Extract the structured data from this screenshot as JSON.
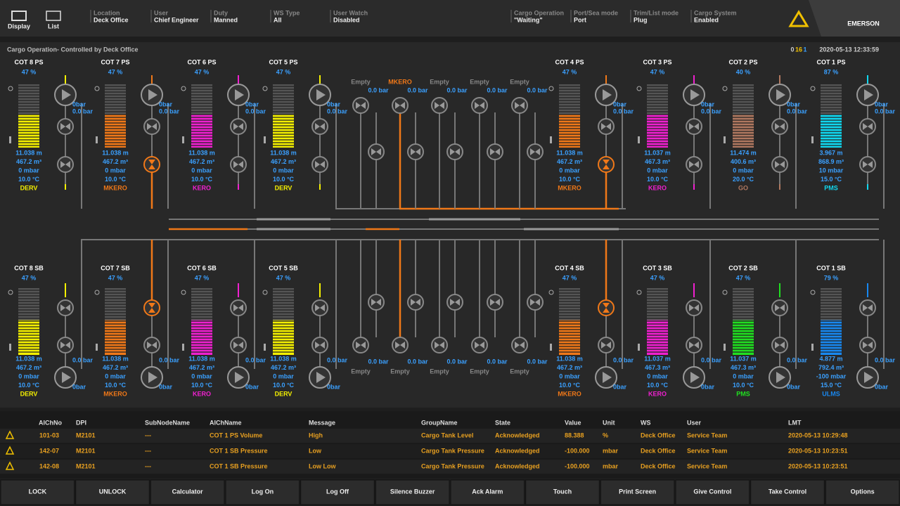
{
  "header": {
    "buttons": [
      "Display",
      "List"
    ],
    "fields": [
      {
        "label": "Location",
        "value": "Deck Office"
      },
      {
        "label": "User",
        "value": "Chief Engineer"
      },
      {
        "label": "Duty",
        "value": "Manned"
      },
      {
        "label": "WS Type",
        "value": "All"
      },
      {
        "label": "User Watch",
        "value": "Disabled"
      },
      {
        "label": "Cargo Operation",
        "value": "\"Waiting\""
      },
      {
        "label": "Port/Sea mode",
        "value": "Port"
      },
      {
        "label": "Trim/List mode",
        "value": "Plug"
      },
      {
        "label": "Cargo System",
        "value": "Enabled"
      }
    ],
    "logo": "EMERSON"
  },
  "status": {
    "title": "Cargo Operation- Controlled by Deck Office",
    "counts": [
      "0",
      "16",
      "1"
    ],
    "datetime": "2020-05-13 12:33:59"
  },
  "top_tanks": [
    {
      "name": "COT 8 PS",
      "percent": "47 %",
      "level": "11.038 m",
      "volume": "467.2 m³",
      "pressure": "0 mbar",
      "temperature": "10.0 °C",
      "product": "DERV",
      "color": "#f4f000",
      "pump": "0bar",
      "line": "0.0 bar"
    },
    {
      "name": "COT 7 PS",
      "percent": "47 %",
      "level": "11.038 m",
      "volume": "467.2 m³",
      "pressure": "0 mbar",
      "temperature": "10.0 °C",
      "product": "MKERO",
      "color": "#f07818",
      "pump": "0bar",
      "line": "0.0 bar"
    },
    {
      "name": "COT 6 PS",
      "percent": "47 %",
      "level": "11.038 m",
      "volume": "467.2 m³",
      "pressure": "0 mbar",
      "temperature": "10.0 °C",
      "product": "KERO",
      "color": "#f020d0",
      "pump": "0bar",
      "line": "0.0 bar"
    },
    {
      "name": "COT 5 PS",
      "percent": "47 %",
      "level": "11.038 m",
      "volume": "467.2 m³",
      "pressure": "0 mbar",
      "temperature": "10.0 °C",
      "product": "DERV",
      "color": "#f4f000",
      "pump": "0bar",
      "line": "0.0 bar"
    },
    {
      "name": "COT 4 PS",
      "percent": "47 %",
      "level": "11.038 m",
      "volume": "467.2 m³",
      "pressure": "0 mbar",
      "temperature": "10.0 °C",
      "product": "MKERO",
      "color": "#f07818",
      "pump": "0bar",
      "line": "0.0 bar"
    },
    {
      "name": "COT 3 PS",
      "percent": "47 %",
      "level": "11.037 m",
      "volume": "467.3 m³",
      "pressure": "0 mbar",
      "temperature": "10.0 °C",
      "product": "KERO",
      "color": "#f020d0",
      "pump": "0bar",
      "line": "0.0 bar"
    },
    {
      "name": "COT 2 PS",
      "percent": "40 %",
      "level": "11.474 m",
      "volume": "400.6 m³",
      "pressure": "0 mbar",
      "temperature": "20.0 °C",
      "product": "GO",
      "color": "#b07860",
      "pump": "0bar",
      "line": "0.0 bar"
    },
    {
      "name": "COT 1 PS",
      "percent": "87 %",
      "level": "3.967 m",
      "volume": "868.9 m³",
      "pressure": "10 mbar",
      "temperature": "15.0 °C",
      "product": "PMS",
      "color": "#10d8f0",
      "pump": "0bar",
      "line": "0.0 bar"
    }
  ],
  "bottom_tanks": [
    {
      "name": "COT 8 SB",
      "percent": "47 %",
      "level": "11.038 m",
      "volume": "467.2 m³",
      "pressure": "0 mbar",
      "temperature": "10.0 °C",
      "product": "DERV",
      "color": "#f4f000",
      "pump": "0bar",
      "line": "0.0 bar"
    },
    {
      "name": "COT 7 SB",
      "percent": "47 %",
      "level": "11.038 m",
      "volume": "467.2 m³",
      "pressure": "0 mbar",
      "temperature": "10.0 °C",
      "product": "MKERO",
      "color": "#f07818",
      "pump": "0bar",
      "line": "0.0 bar"
    },
    {
      "name": "COT 6 SB",
      "percent": "47 %",
      "level": "11.038 m",
      "volume": "467.2 m³",
      "pressure": "0 mbar",
      "temperature": "10.0 °C",
      "product": "KERO",
      "color": "#f020d0",
      "pump": "0bar",
      "line": "0.0 bar"
    },
    {
      "name": "COT 5 SB",
      "percent": "47 %",
      "level": "11.038 m",
      "volume": "467.2 m³",
      "pressure": "0 mbar",
      "temperature": "10.0 °C",
      "product": "DERV",
      "color": "#f4f000",
      "pump": "0bar",
      "line": "0.0 bar"
    },
    {
      "name": "COT 4 SB",
      "percent": "47 %",
      "level": "11.038 m",
      "volume": "467.2 m³",
      "pressure": "0 mbar",
      "temperature": "10.0 °C",
      "product": "MKERO",
      "color": "#f07818",
      "pump": "0bar",
      "line": "0.0 bar"
    },
    {
      "name": "COT 3 SB",
      "percent": "47 %",
      "level": "11.037 m",
      "volume": "467.3 m³",
      "pressure": "0 mbar",
      "temperature": "10.0 °C",
      "product": "KERO",
      "color": "#f020d0",
      "pump": "0bar",
      "line": "0.0 bar"
    },
    {
      "name": "COT 2 SB",
      "percent": "47 %",
      "level": "11.037 m",
      "volume": "467.3 m³",
      "pressure": "0 mbar",
      "temperature": "10.0 °C",
      "product": "PMS",
      "color": "#20e020",
      "pump": "0bar",
      "line": "0.0 bar"
    },
    {
      "name": "COT 1 SB",
      "percent": "79 %",
      "level": "4.877 m",
      "volume": "792.4 m³",
      "pressure": "-100 mbar",
      "temperature": "15.0 °C",
      "product": "ULMS",
      "color": "#1888f0",
      "pump": "0bar",
      "line": "0.0 bar"
    }
  ],
  "manifold_top": [
    {
      "label": "Empty",
      "pressure": "0.0 bar"
    },
    {
      "label": "MKERO",
      "pressure": "0.0 bar"
    },
    {
      "label": "Empty",
      "pressure": "0.0 bar"
    },
    {
      "label": "Empty",
      "pressure": "0.0 bar"
    },
    {
      "label": "Empty",
      "pressure": "0.0 bar"
    }
  ],
  "manifold_bottom": [
    {
      "label": "Empty",
      "pressure": "0.0 bar"
    },
    {
      "label": "Empty",
      "pressure": "0.0 bar"
    },
    {
      "label": "Empty",
      "pressure": "0.0 bar"
    },
    {
      "label": "Empty",
      "pressure": "0.0 bar"
    },
    {
      "label": "Empty",
      "pressure": "0.0 bar"
    }
  ],
  "alarms": {
    "columns": [
      "AlChNo",
      "DPI",
      "SubNodeName",
      "AlChName",
      "Message",
      "GroupName",
      "State",
      "Value",
      "Unit",
      "WS",
      "User",
      "LMT"
    ],
    "rows": [
      [
        "101-03",
        "M2101",
        "---",
        "COT 1 PS Volume",
        "High",
        "Cargo Tank Level",
        "Acknowledged",
        "88.388",
        "%",
        "Deck Office",
        "Service Team",
        "2020-05-13 10:29:48"
      ],
      [
        "142-07",
        "M2101",
        "---",
        "COT 1 SB Pressure",
        "Low",
        "Cargo Tank Pressure",
        "Acknowledged",
        "-100.000",
        "mbar",
        "Deck Office",
        "Service Team",
        "2020-05-13 10:23:51"
      ],
      [
        "142-08",
        "M2101",
        "---",
        "COT 1 SB Pressure",
        "Low Low",
        "Cargo Tank Pressure",
        "Acknowledged",
        "-100.000",
        "mbar",
        "Deck Office",
        "Service Team",
        "2020-05-13 10:23:51"
      ]
    ]
  },
  "footer": [
    "LOCK",
    "UNLOCK",
    "Calculator",
    "Log On",
    "Log Off",
    "Silence Buzzer",
    "Ack Alarm",
    "Touch",
    "Print Screen",
    "Give Control",
    "Take Control",
    "Options"
  ]
}
